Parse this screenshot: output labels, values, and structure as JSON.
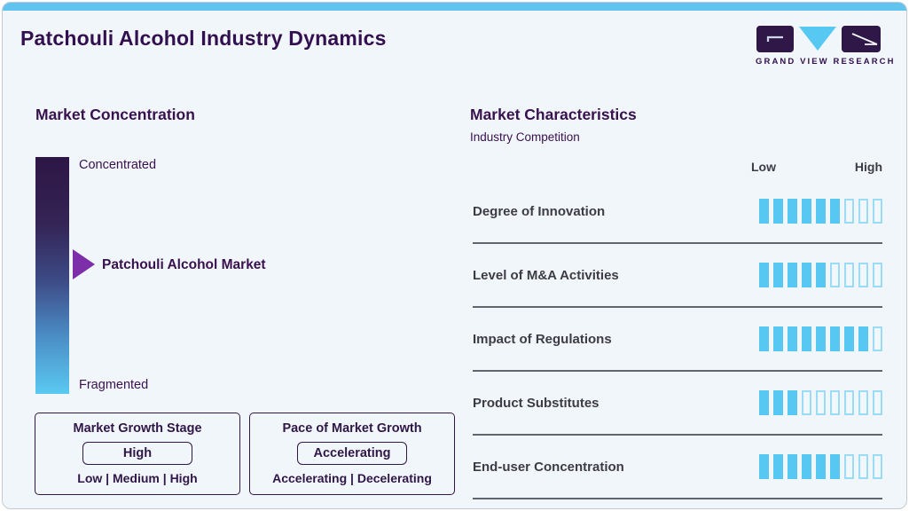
{
  "page": {
    "title": "Patchouli Alcohol Industry Dynamics"
  },
  "logo": {
    "text": "GRAND VIEW RESEARCH"
  },
  "market_concentration": {
    "heading": "Market Concentration",
    "top_label": "Concentrated",
    "bottom_label": "Fragmented",
    "pointer_label": "Patchouli Alcohol Market"
  },
  "growth_stage_box": {
    "title": "Market Growth Stage",
    "value": "High",
    "options": "Low | Medium | High"
  },
  "pace_box": {
    "title": "Pace of Market Growth",
    "value": "Accelerating",
    "options": "Accelerating | Decelerating"
  },
  "market_characteristics": {
    "heading": "Market Characteristics",
    "subheading": "Industry Competition",
    "scale_low": "Low",
    "scale_high": "High",
    "total_segments": 9,
    "rows": [
      {
        "label": "Degree of Innovation",
        "filled": 6
      },
      {
        "label": "Level of M&A Activities",
        "filled": 5
      },
      {
        "label": "Impact of Regulations",
        "filled": 8
      },
      {
        "label": "Product Substitutes",
        "filled": 3
      },
      {
        "label": "End-user Concentration",
        "filled": 6
      }
    ]
  },
  "colors": {
    "accent_blue": "#57c8f1",
    "top_strip_blue": "#60c4ee",
    "dark_purple": "#321050",
    "arrow_purple": "#7c2fa9",
    "gradient_top": "#2d1645",
    "gradient_bottom": "#5ac9f1",
    "row_text": "#3d3c46"
  },
  "chart_data": {
    "type": "bar",
    "title": "Patchouli Alcohol Industry Dynamics",
    "subtitle": "Industry Competition",
    "categories": [
      "Degree of Innovation",
      "Level of M&A Activities",
      "Impact of Regulations",
      "Product Substitutes",
      "End-user Concentration"
    ],
    "values": [
      6,
      5,
      8,
      3,
      6
    ],
    "ylim": [
      0,
      9
    ],
    "scale": {
      "min_label": "Low",
      "max_label": "High",
      "segments": 9
    },
    "annotations": {
      "concentration_axis_top": "Concentrated",
      "concentration_axis_bottom": "Fragmented",
      "market_position_label": "Patchouli Alcohol Market",
      "market_growth_stage": "High",
      "pace_of_market_growth": "Accelerating"
    }
  }
}
